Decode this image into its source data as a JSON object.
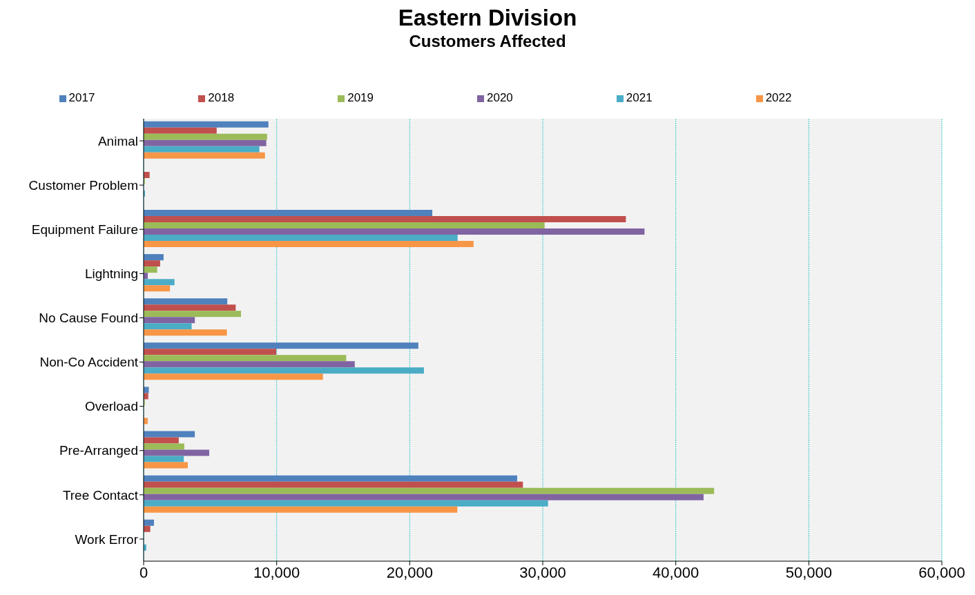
{
  "chart_data": {
    "type": "bar",
    "orientation": "horizontal",
    "title": "Eastern Division",
    "subtitle": "Customers Affected",
    "categories": [
      "Animal",
      "Customer Problem",
      "Equipment Failure",
      "Lightning",
      "No Cause Found",
      "Non-Co Accident",
      "Overload",
      "Pre-Arranged",
      "Tree Contact",
      "Work Error"
    ],
    "series": [
      {
        "name": "2017",
        "color": "#4f81bd",
        "values": [
          9380,
          0,
          21700,
          1500,
          6290,
          20650,
          390,
          3850,
          28080,
          780
        ]
      },
      {
        "name": "2018",
        "color": "#c0504d",
        "values": [
          5490,
          450,
          36250,
          1240,
          6920,
          9970,
          350,
          2640,
          28510,
          500
        ]
      },
      {
        "name": "2019",
        "color": "#9bbb59",
        "values": [
          9280,
          90,
          30140,
          1020,
          7320,
          15230,
          90,
          3060,
          42880,
          null
        ]
      },
      {
        "name": "2020",
        "color": "#8064a2",
        "values": [
          9220,
          0,
          37650,
          310,
          3850,
          15870,
          0,
          4930,
          42090,
          0
        ]
      },
      {
        "name": "2021",
        "color": "#4bacc6",
        "values": [
          8700,
          100,
          23600,
          2320,
          3610,
          21070,
          null,
          3020,
          30400,
          200
        ]
      },
      {
        "name": "2022",
        "color": "#f79646",
        "values": [
          9120,
          0,
          24800,
          1980,
          6260,
          13480,
          310,
          3320,
          23580,
          0
        ]
      }
    ],
    "xlim": [
      0,
      60000
    ],
    "xticks": [
      0,
      {
        "value": 10000,
        "label": "10,000"
      },
      {
        "value": 20000,
        "label": "20,000"
      },
      {
        "value": 30000,
        "label": "30,000"
      },
      {
        "value": 40000,
        "label": "40,000"
      },
      {
        "value": 50000,
        "label": "50,000"
      },
      {
        "value": 60000,
        "label": "60,000"
      }
    ],
    "grid": "x",
    "legend": "top"
  }
}
